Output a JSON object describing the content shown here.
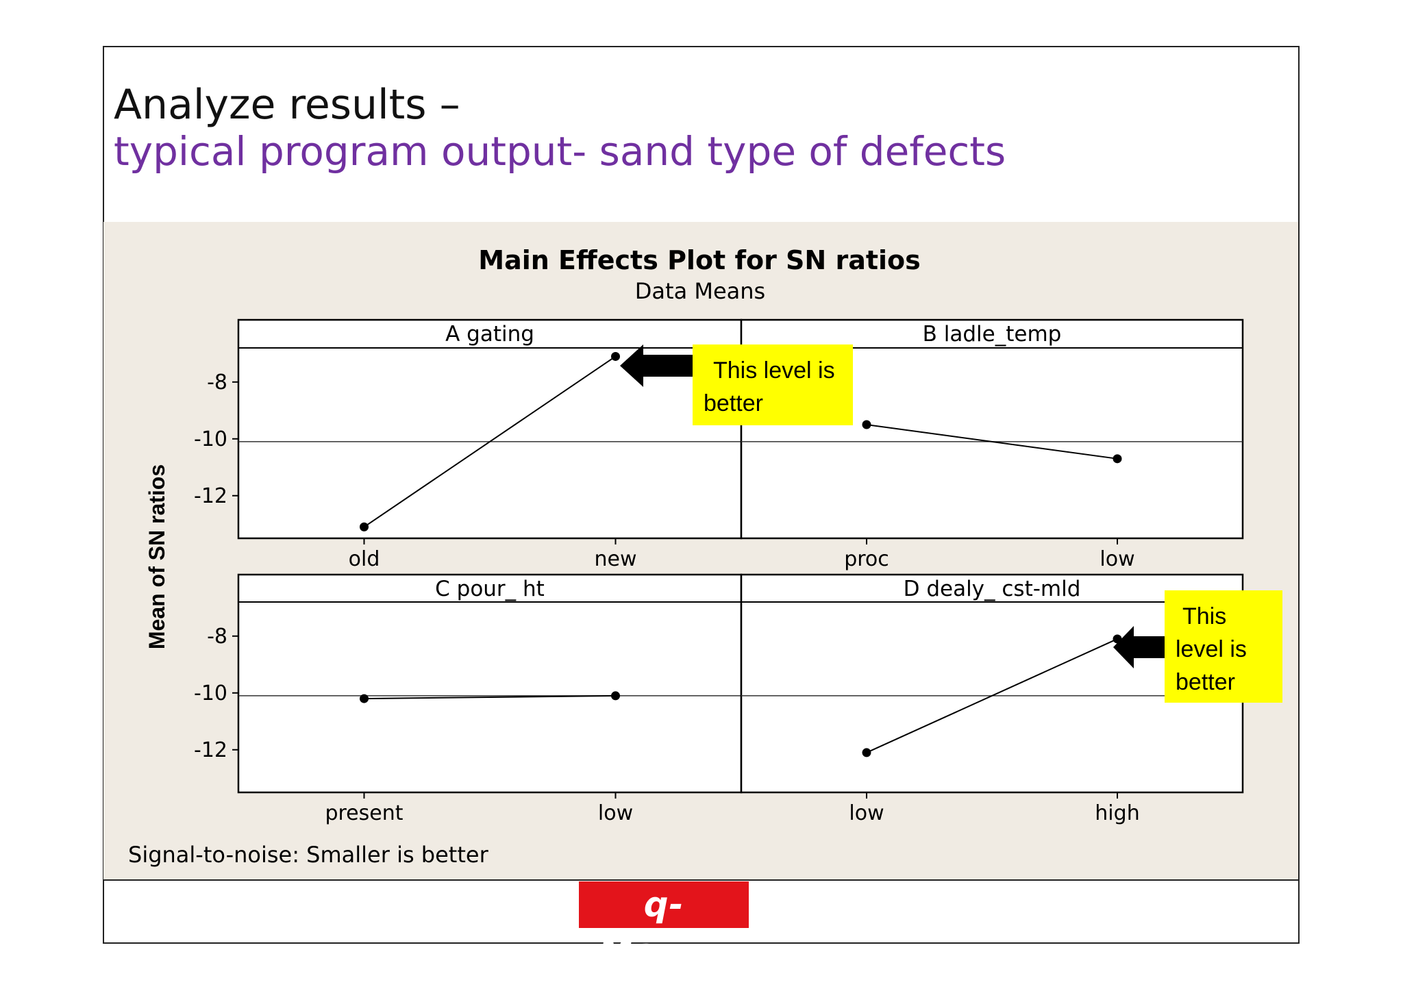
{
  "slide": {
    "title_line1": "Analyze results –",
    "title_line2": "typical program output- sand type of defects",
    "title2_color": "#7030a0",
    "panel_color": "#f0ebe3",
    "logo_text": "q-Maxim",
    "logo_color": "#e3141b"
  },
  "chart_data": {
    "type": "line",
    "title": "Main Effects Plot for SN ratios",
    "subtitle": "Data Means",
    "ylabel": "Mean of SN ratios",
    "footnote": "Signal-to-noise: Smaller is better",
    "ylim": [
      -13.5,
      -6.8
    ],
    "yticks": [
      -8,
      -10,
      -12
    ],
    "reference_line": -10.1,
    "panels": [
      {
        "name": "A gating",
        "categories": [
          "old",
          "new"
        ],
        "values": [
          -13.1,
          -7.1
        ]
      },
      {
        "name": "B ladle_temp",
        "categories": [
          "proc",
          "low"
        ],
        "values": [
          -9.5,
          -10.7
        ]
      },
      {
        "name": "C pour_ ht",
        "categories": [
          "present",
          "low"
        ],
        "values": [
          -10.2,
          -10.1
        ]
      },
      {
        "name": "D dealy_ cst-mld",
        "categories": [
          "low",
          "high"
        ],
        "values": [
          -12.1,
          -8.1
        ]
      }
    ]
  },
  "callouts": [
    {
      "text_line1": "This level is",
      "text_line2": "better",
      "color": "#ffff00"
    },
    {
      "text_line1": "This",
      "text_line2": "level is",
      "text_line3": "better",
      "color": "#ffff00"
    }
  ]
}
